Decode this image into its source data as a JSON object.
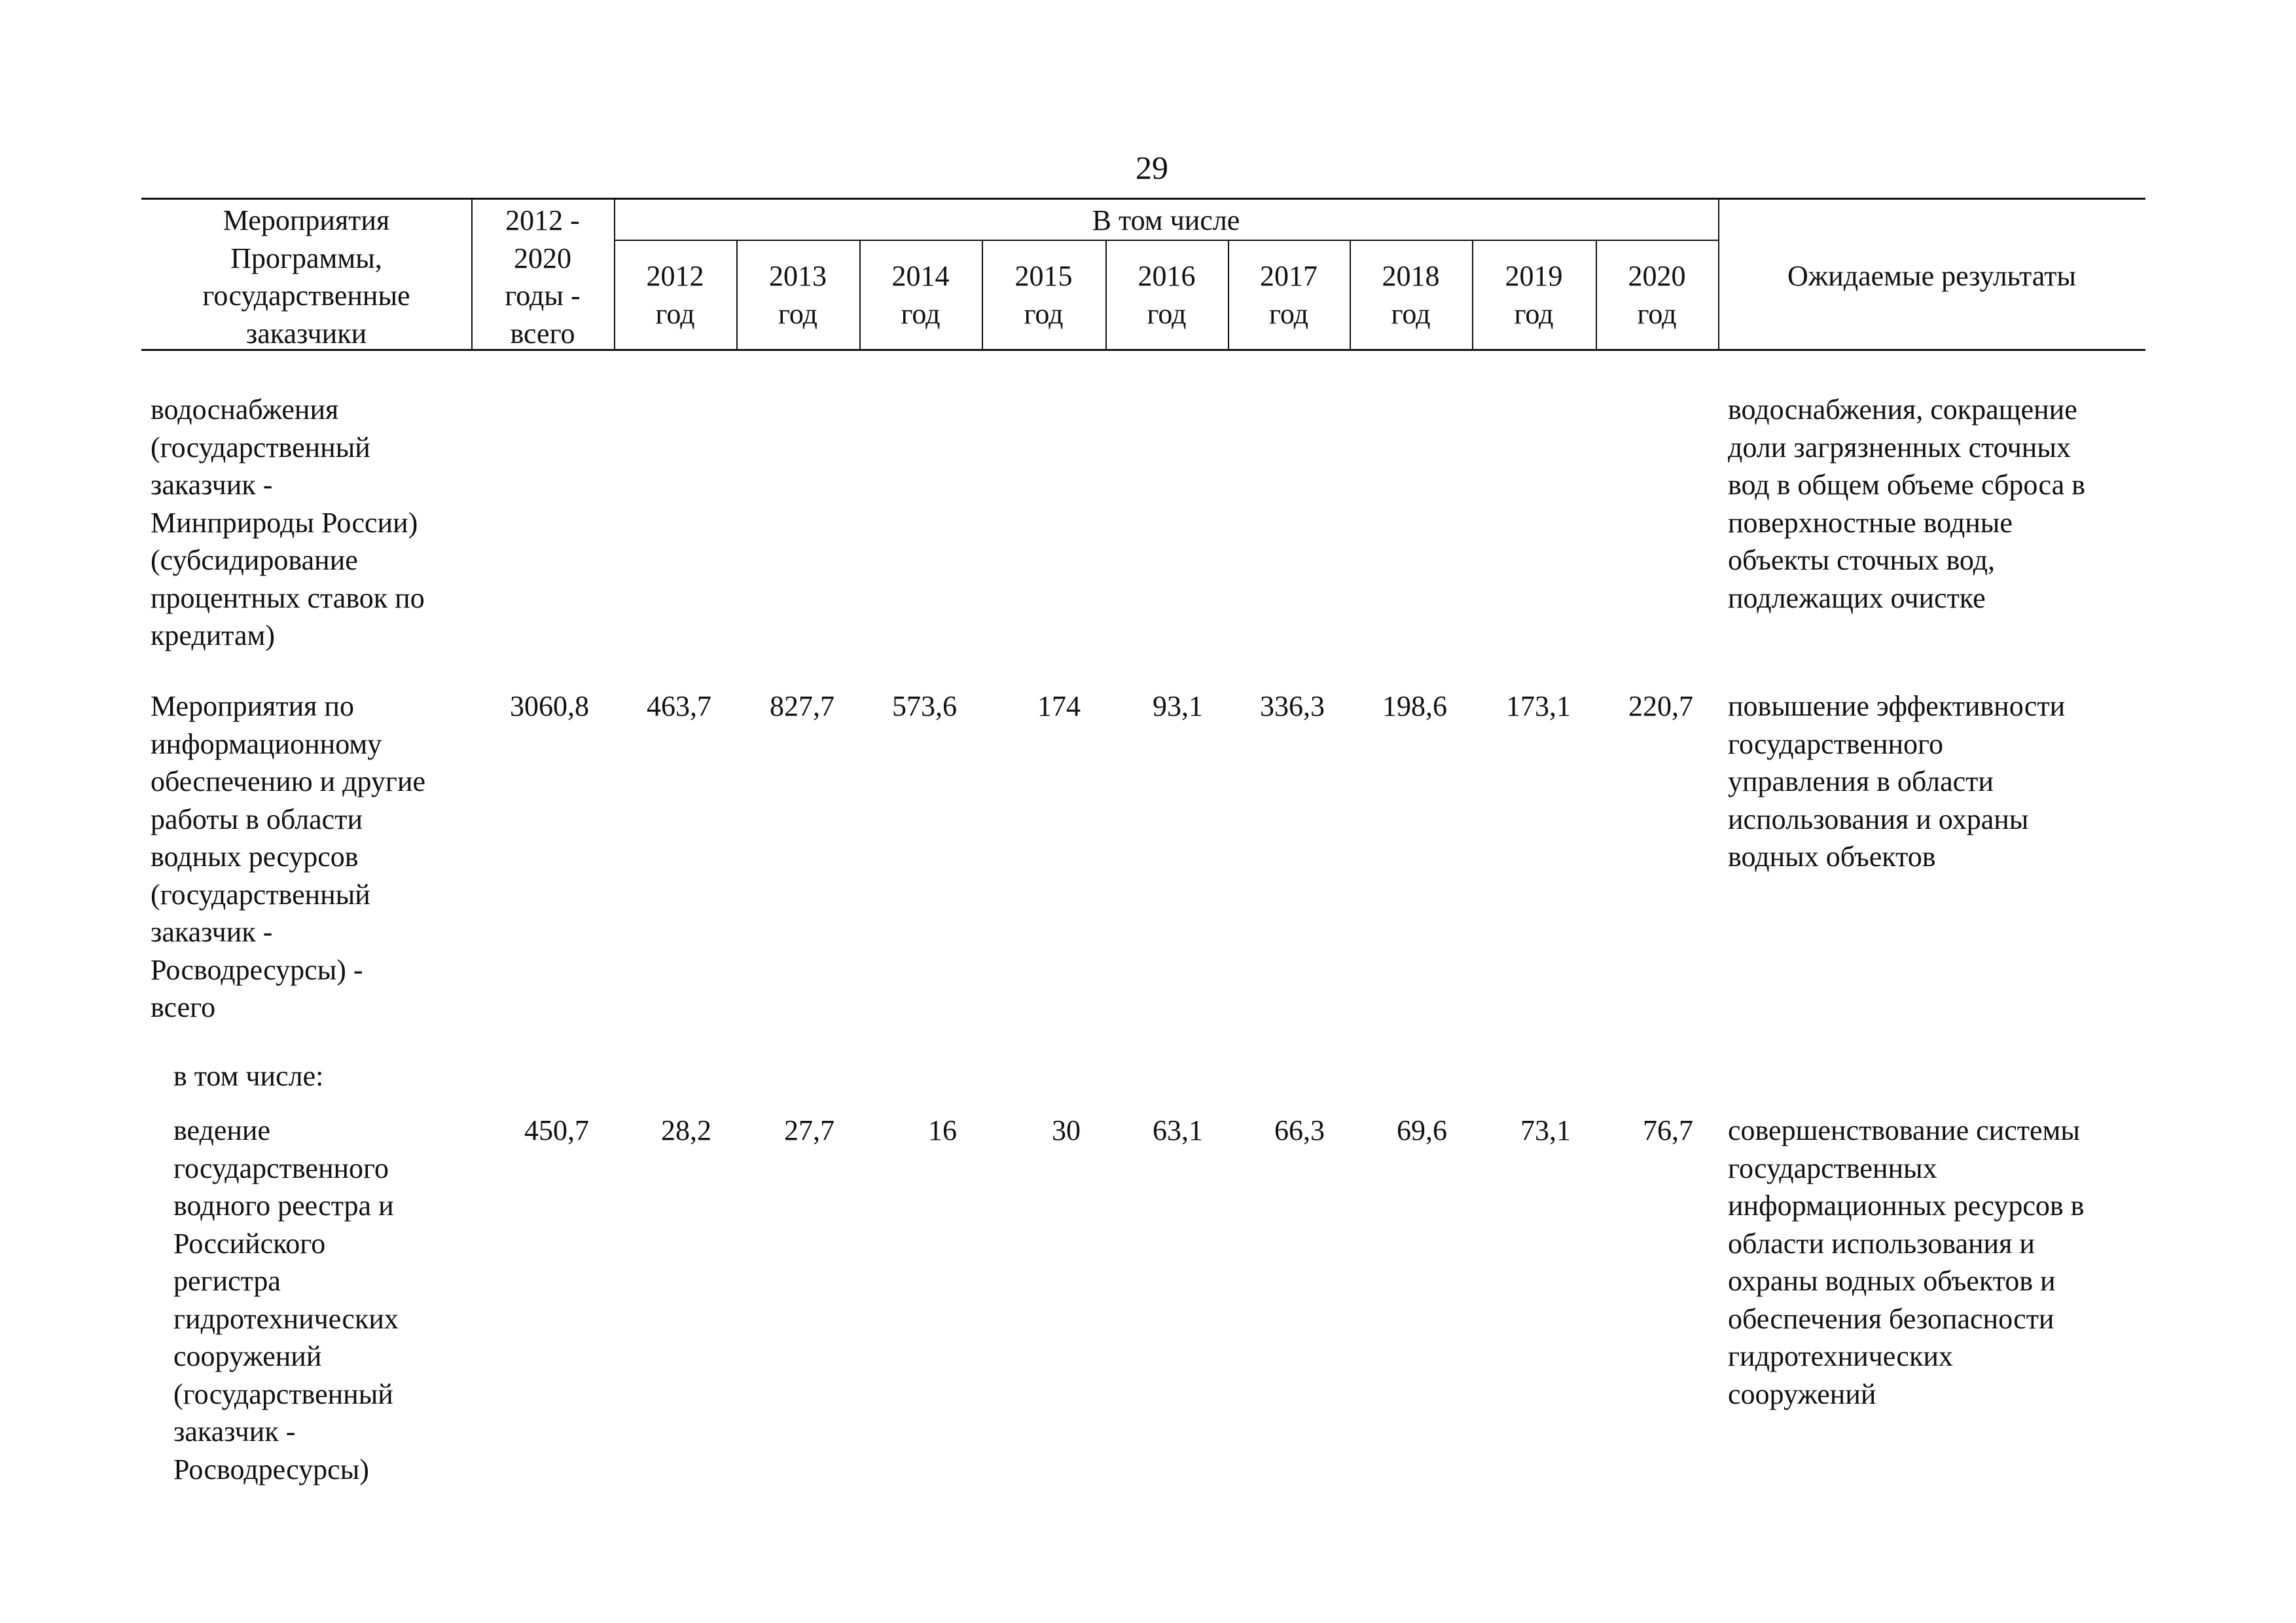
{
  "page_number": "29",
  "header": {
    "col_activity": "Мероприятия\nПрограммы,\nгосударственные\nзаказчики",
    "col_total": "2012 -\n2020\nгоды -\nвсего",
    "col_including": "В том числе",
    "years": [
      "2012\nгод",
      "2013\nгод",
      "2014\nгод",
      "2015\nгод",
      "2016\nгод",
      "2017\nгод",
      "2018\nгод",
      "2019\nгод",
      "2020\nгод"
    ],
    "col_results": "Ожидаемые результаты"
  },
  "rows": [
    {
      "activity": "водоснабжения\n(государственный\nзаказчик -\nМинприроды России)\n(субсидирование\nпроцентных ставок по\nкредитам)",
      "total": "",
      "values": [
        "",
        "",
        "",
        "",
        "",
        "",
        "",
        "",
        ""
      ],
      "results": "водоснабжения, сокращение\nдоли загрязненных сточных\nвод в общем объеме сброса в\nповерхностные водные\nобъекты сточных вод,\nподлежащих очистке"
    },
    {
      "activity": "Мероприятия по\nинформационному\nобеспечению и другие\nработы в области\nводных ресурсов\n(государственный\nзаказчик -\nРосводресурсы) -\nвсего",
      "total": "3060,8",
      "values": [
        "463,7",
        "827,7",
        "573,6",
        "174",
        "93,1",
        "336,3",
        "198,6",
        "173,1",
        "220,7"
      ],
      "results": "повышение эффективности\nгосударственного\nуправления в области\nиспользования и охраны\nводных объектов"
    },
    {
      "activity": "в том числе:"
    },
    {
      "activity": "ведение\nгосударственного\nводного реестра  и\nРоссийского\nрегистра\nгидротехнических\nсооружений\n(государственный\nзаказчик -\nРосводресурсы)",
      "total": "450,7",
      "values": [
        "28,2",
        "27,7",
        "16",
        "30",
        "63,1",
        "66,3",
        "69,6",
        "73,1",
        "76,7"
      ],
      "results": "совершенствование системы\nгосударственных\nинформационных ресурсов в\nобласти использования и\nохраны водных объектов и\nобеспечения безопасности\nгидротехнических\nсооружений"
    }
  ]
}
